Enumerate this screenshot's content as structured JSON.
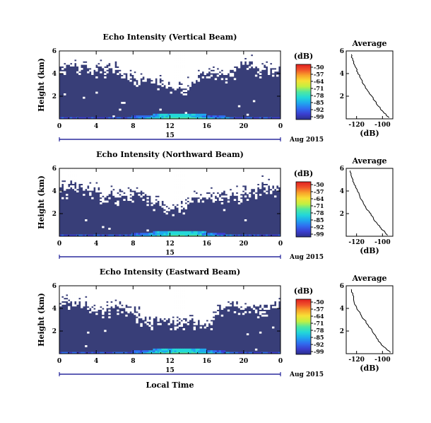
{
  "colors": {
    "background_echo": "#383e78",
    "colormap": [
      "#2b2f8a",
      "#3a3fd0",
      "#2f6ef0",
      "#1fa8ee",
      "#23d8d8",
      "#4fe8a0",
      "#c4f040",
      "#f7e035",
      "#f9a42a",
      "#f0522a",
      "#e02020"
    ]
  },
  "chart_data": [
    {
      "type": "heatmap",
      "title": "Echo Intensity (Vertical Beam)",
      "ylabel": "Height (km)",
      "xlabel": "",
      "x_ticks": [
        "0",
        "4",
        "8",
        "12",
        "16",
        "20",
        "0"
      ],
      "y_ticks": [
        "6",
        "4",
        "2"
      ],
      "xlim": [
        0,
        24
      ],
      "ylim": [
        0,
        6
      ],
      "day_label": "15",
      "date_label": "Aug 2015",
      "colorbar": {
        "unit": "(dB)",
        "ticks": [
          "-50",
          "-57",
          "-64",
          "-71",
          "-78",
          "-85",
          "-92",
          "-99"
        ],
        "range": [
          -99,
          -50
        ]
      },
      "profile": {
        "title": "Average",
        "xlabel": "(dB)",
        "x_ticks": [
          "-120",
          "-100"
        ],
        "y_ticks": [
          "6",
          "4",
          "2"
        ],
        "xlim": [
          -128,
          -92
        ],
        "ylim": [
          0,
          6
        ],
        "points": [
          [
            -124,
            5.7
          ],
          [
            -123,
            5.2
          ],
          [
            -121,
            4.6
          ],
          [
            -119,
            4.1
          ],
          [
            -117,
            3.6
          ],
          [
            -115,
            3.1
          ],
          [
            -112,
            2.6
          ],
          [
            -109,
            2.1
          ],
          [
            -106,
            1.6
          ],
          [
            -103,
            1.1
          ],
          [
            -100,
            0.7
          ],
          [
            -97,
            0.35
          ],
          [
            -95,
            0.1
          ]
        ]
      }
    },
    {
      "type": "heatmap",
      "title": "Echo Intensity (Northward Beam)",
      "ylabel": "Height (km)",
      "xlabel": "",
      "x_ticks": [
        "0",
        "4",
        "8",
        "12",
        "16",
        "20",
        "0"
      ],
      "y_ticks": [
        "6",
        "4",
        "2"
      ],
      "xlim": [
        0,
        24
      ],
      "ylim": [
        0,
        6
      ],
      "day_label": "15",
      "date_label": "Aug 2015",
      "colorbar": {
        "unit": "(dB)",
        "ticks": [
          "-50",
          "-57",
          "-64",
          "-71",
          "-78",
          "-85",
          "-92",
          "-99"
        ],
        "range": [
          -99,
          -50
        ]
      },
      "profile": {
        "title": "Average",
        "xlabel": "(dB)",
        "x_ticks": [
          "-120",
          "-100"
        ],
        "y_ticks": [
          "6",
          "4",
          "2"
        ],
        "xlim": [
          -128,
          -92
        ],
        "ylim": [
          0,
          6
        ],
        "points": [
          [
            -125,
            5.8
          ],
          [
            -124,
            5.3
          ],
          [
            -122,
            4.7
          ],
          [
            -120,
            4.2
          ],
          [
            -118,
            3.7
          ],
          [
            -116,
            3.2
          ],
          [
            -113,
            2.6
          ],
          [
            -110,
            2.1
          ],
          [
            -107,
            1.6
          ],
          [
            -104,
            1.1
          ],
          [
            -101,
            0.7
          ],
          [
            -98,
            0.35
          ],
          [
            -96,
            0.1
          ]
        ]
      }
    },
    {
      "type": "heatmap",
      "title": "Echo Intensity (Eastward Beam)",
      "ylabel": "Height (km)",
      "xlabel": "Local Time",
      "x_ticks": [
        "0",
        "4",
        "8",
        "12",
        "16",
        "20",
        "0"
      ],
      "y_ticks": [
        "6",
        "4",
        "2"
      ],
      "xlim": [
        0,
        24
      ],
      "ylim": [
        0,
        6
      ],
      "day_label": "15",
      "date_label": "Aug 2015",
      "colorbar": {
        "unit": "(dB)",
        "ticks": [
          "-50",
          "-57",
          "-64",
          "-71",
          "-78",
          "-85",
          "-92",
          "-99"
        ],
        "range": [
          -99,
          -50
        ]
      },
      "profile": {
        "title": "Average",
        "xlabel": "(dB)",
        "x_ticks": [
          "-120",
          "-100"
        ],
        "y_ticks": [
          "6",
          "4",
          "2"
        ],
        "xlim": [
          -128,
          -92
        ],
        "ylim": [
          0,
          6
        ],
        "points": [
          [
            -124,
            5.7
          ],
          [
            -123,
            5.2
          ],
          [
            -122,
            4.6
          ],
          [
            -120,
            4.1
          ],
          [
            -117,
            3.5
          ],
          [
            -114,
            3.0
          ],
          [
            -111,
            2.5
          ],
          [
            -108,
            2.0
          ],
          [
            -105,
            1.5
          ],
          [
            -102,
            1.0
          ],
          [
            -99,
            0.6
          ],
          [
            -96,
            0.3
          ],
          [
            -94,
            0.1
          ]
        ]
      }
    }
  ]
}
